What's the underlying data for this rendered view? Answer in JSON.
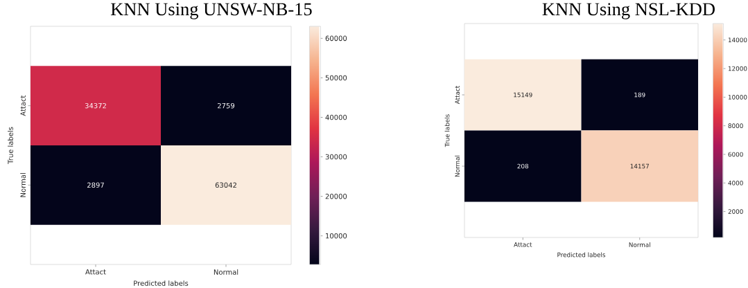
{
  "chart_data": [
    {
      "type": "heatmap",
      "title": "KNN Using UNSW-NB-15",
      "xlabel": "Predicted labels",
      "ylabel": "True labels",
      "categories": [
        "Attact",
        "Normal"
      ],
      "y_categories": [
        "Attact",
        "Normal"
      ],
      "cells": [
        [
          34372,
          2759
        ],
        [
          2897,
          63042
        ]
      ],
      "clim": [
        2759,
        63042
      ],
      "cticks": [
        10000,
        20000,
        30000,
        40000,
        50000,
        60000
      ],
      "data_labels": true
    },
    {
      "type": "heatmap",
      "title": "KNN Using NSL-KDD",
      "xlabel": "Predicted labels",
      "ylabel": "True labels",
      "categories": [
        "Attact",
        "Normal"
      ],
      "y_categories": [
        "Attact",
        "Normal"
      ],
      "cells": [
        [
          15149,
          189
        ],
        [
          208,
          14157
        ]
      ],
      "clim": [
        189,
        15149
      ],
      "cticks": [
        2000,
        4000,
        6000,
        8000,
        10000,
        12000,
        14000
      ],
      "data_labels": true
    }
  ]
}
